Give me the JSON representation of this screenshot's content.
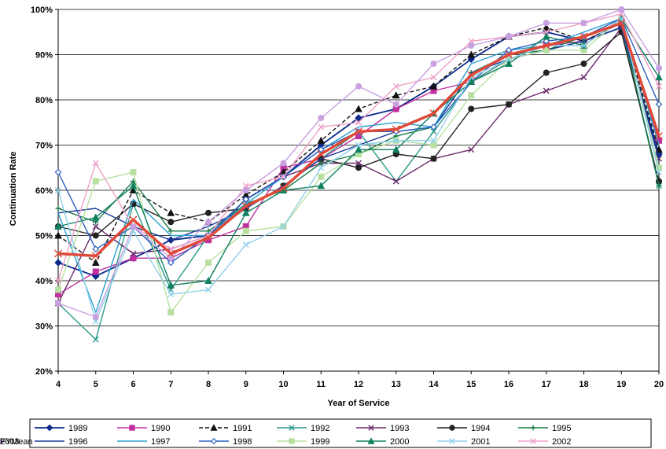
{
  "chart_data": {
    "type": "line",
    "xlabel": "Year of Service",
    "ylabel": "Continuation Rate",
    "x": [
      4,
      5,
      6,
      7,
      8,
      9,
      10,
      11,
      12,
      13,
      14,
      15,
      16,
      17,
      18,
      19,
      20
    ],
    "x_tick_labels": [
      "4",
      "5",
      "6",
      "7",
      "8",
      "9",
      "10",
      "11",
      "12",
      "13",
      "14",
      "15",
      "16",
      "17",
      "18",
      "19",
      "20"
    ],
    "ylim": [
      20,
      100
    ],
    "y_ticks": [
      20,
      30,
      40,
      50,
      60,
      70,
      80,
      90,
      100
    ],
    "y_tick_labels": [
      "20%",
      "30%",
      "40%",
      "50%",
      "60%",
      "70%",
      "80%",
      "90%",
      "100%"
    ],
    "grid": "horizontal",
    "legend_position": "bottom",
    "series": [
      {
        "name": "1989",
        "color": "#0a2a8a",
        "marker": "diamond",
        "dash": "",
        "width": 1.8,
        "values": [
          44,
          41,
          45,
          49,
          50,
          58,
          63,
          70,
          76,
          78,
          83,
          89,
          94,
          95,
          93,
          96,
          68
        ]
      },
      {
        "name": "1990",
        "color": "#c030a0",
        "marker": "square",
        "dash": "",
        "width": 1.4,
        "values": [
          37,
          42,
          45,
          45,
          49,
          52,
          65,
          67,
          72,
          78,
          82,
          84,
          89,
          92,
          93,
          97,
          71
        ]
      },
      {
        "name": "1991",
        "color": "#111111",
        "marker": "triangle",
        "dash": "5,3",
        "width": 1.4,
        "values": [
          50,
          44,
          60,
          55,
          53,
          59,
          64,
          71,
          78,
          81,
          83,
          90,
          94,
          96,
          93,
          97,
          69
        ]
      },
      {
        "name": "1992",
        "color": "#2a9a8a",
        "marker": "x",
        "dash": "",
        "width": 1.4,
        "values": [
          35,
          27,
          57,
          38,
          50,
          56,
          61,
          67,
          73,
          62,
          73,
          84,
          89,
          91,
          93,
          96,
          61
        ]
      },
      {
        "name": "1993",
        "color": "#6a2a6a",
        "marker": "x",
        "dash": "",
        "width": 1.4,
        "values": [
          35,
          52,
          46,
          47,
          50,
          58,
          63,
          66,
          66,
          62,
          67,
          69,
          79,
          82,
          85,
          96,
          67
        ]
      },
      {
        "name": "1994",
        "color": "#222222",
        "marker": "circle",
        "dash": "",
        "width": 1.4,
        "values": [
          52,
          50,
          57,
          53,
          55,
          56,
          61,
          67,
          65,
          68,
          67,
          78,
          79,
          86,
          88,
          95,
          62
        ]
      },
      {
        "name": "1995",
        "color": "#1a7a4a",
        "marker": "plus",
        "dash": "",
        "width": 1.4,
        "values": [
          56,
          53,
          62,
          51,
          51,
          57,
          60,
          66,
          68,
          72,
          74,
          86,
          90,
          91,
          94,
          97,
          61
        ]
      },
      {
        "name": "1996",
        "color": "#1a3a9a",
        "marker": "none",
        "dash": "",
        "width": 1.4,
        "values": [
          55,
          56,
          52,
          49,
          52,
          56,
          61,
          67,
          70,
          73,
          74,
          86,
          89,
          91,
          93,
          96,
          67
        ]
      },
      {
        "name": "1997",
        "color": "#2aa0d0",
        "marker": "none",
        "dash": "",
        "width": 1.4,
        "values": [
          55,
          33,
          58,
          50,
          50,
          57,
          63,
          69,
          74,
          75,
          74,
          88,
          91,
          92,
          95,
          98,
          70
        ]
      },
      {
        "name": "1998",
        "color": "#2a60c0",
        "marker": "diamond-open",
        "dash": "",
        "width": 1.4,
        "values": [
          64,
          47,
          52,
          44,
          50,
          58,
          63,
          69,
          73,
          73,
          74,
          84,
          91,
          93,
          94,
          98,
          79
        ]
      },
      {
        "name": "1999",
        "color": "#b8e0a0",
        "marker": "square",
        "dash": "",
        "width": 1.4,
        "values": [
          38,
          62,
          64,
          33,
          44,
          51,
          52,
          63,
          68,
          71,
          70,
          81,
          89,
          91,
          91,
          98,
          65
        ]
      },
      {
        "name": "2000",
        "color": "#108060",
        "marker": "triangle",
        "dash": "",
        "width": 1.4,
        "values": [
          52,
          54,
          61,
          39,
          40,
          55,
          60,
          61,
          69,
          69,
          77,
          84,
          88,
          94,
          92,
          98,
          85
        ]
      },
      {
        "name": "2001",
        "color": "#90d0e8",
        "marker": "x",
        "dash": "",
        "width": 1.4,
        "values": [
          60,
          31,
          51,
          37,
          38,
          48,
          52,
          65,
          70,
          71,
          71,
          85,
          89,
          92,
          92,
          98,
          64
        ]
      },
      {
        "name": "2002",
        "color": "#f0a0c8",
        "marker": "x",
        "dash": "",
        "width": 1.4,
        "values": [
          40,
          66,
          52,
          47,
          50,
          61,
          63,
          74,
          75,
          83,
          85,
          93,
          94,
          95,
          97,
          99,
          83
        ]
      },
      {
        "name": "2003",
        "color": "#c8a0e0",
        "marker": "circle",
        "dash": "",
        "width": 1.4,
        "values": [
          35,
          32,
          52,
          45,
          53,
          60,
          66,
          76,
          83,
          79,
          88,
          92,
          94,
          97,
          97,
          100,
          87
        ]
      },
      {
        "name": "FYMean",
        "color": "#e04838",
        "marker": "x",
        "dash": "",
        "width": 3.4,
        "values": [
          46,
          45.5,
          53.5,
          46,
          49.5,
          56.5,
          60.5,
          68,
          73,
          73.5,
          77,
          85.5,
          90,
          92,
          94,
          97,
          72
        ]
      }
    ]
  }
}
